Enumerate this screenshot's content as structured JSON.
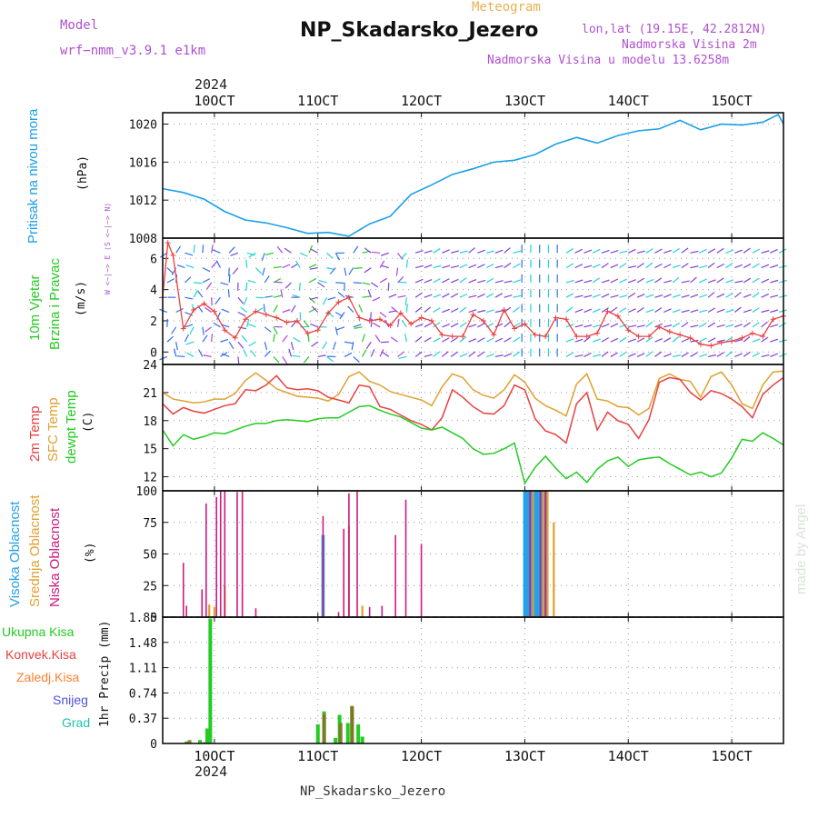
{
  "header": {
    "model_label": "Model",
    "model_name": "wrf−nmm_v3.9.1  e1km",
    "meteogram": "Meteogram",
    "station": "NP_Skadarsko_Jezero",
    "lonlat": "lon,lat (19.15E, 42.2812N)",
    "elev": "Nadmorska Visina 2m",
    "elev_model": "Nadmorska Visina u modelu 13.6258m",
    "year": "2024",
    "footer_station": "NP_Skadarsko_Jezero",
    "credit": "made by Angel"
  },
  "colors": {
    "pressure": "#1aa0e6",
    "wind_speed": "#e84040",
    "temp2m": "#e84040",
    "sfc_temp": "#e0a030",
    "dewpt": "#22cc22",
    "high_cloud": "#22a0e8",
    "mid_cloud": "#e0a030",
    "low_cloud": "#cc1a80",
    "total_precip": "#22cc22",
    "conv_precip": "#e84040",
    "frozen_precip": "#ff8030",
    "snow": "#5050dd",
    "graupel": "#20c0b0",
    "purple_text": "#b050d0",
    "orange_text": "#e8b050"
  },
  "chart_data": [
    {
      "type": "line",
      "panel": "pressure",
      "ylabel_lines": [
        "Pritisak na nivou mora",
        "(hPa)"
      ],
      "x_ticks": [
        "10OCT",
        "11OCT",
        "12OCT",
        "13OCT",
        "14OCT",
        "15OCT"
      ],
      "x_tick_days": [
        10,
        11,
        12,
        13,
        14,
        15
      ],
      "xlim": [
        9.5,
        15.5
      ],
      "ylim": [
        1008,
        1021.2
      ],
      "y_ticks": [
        "1008",
        "1012",
        "1016",
        "1020"
      ],
      "y_tick_values": [
        1008,
        1012,
        1016,
        1020
      ],
      "grid": true,
      "series": [
        {
          "x": [
            9.5,
            9.7,
            9.9,
            10.1,
            10.3,
            10.5,
            10.7,
            10.9,
            11.1,
            11.3,
            11.5,
            11.7,
            11.9,
            12.1,
            12.3,
            12.5,
            12.7,
            12.9,
            13.1,
            13.3,
            13.5,
            13.7,
            13.9,
            14.1,
            14.3,
            14.5,
            14.7,
            14.9,
            15.1,
            15.3,
            15.45,
            15.5
          ],
          "y": [
            1013.2,
            1012.8,
            1012.1,
            1010.8,
            1009.9,
            1009.6,
            1009.1,
            1008.5,
            1008.6,
            1008.2,
            1009.5,
            1010.3,
            1012.6,
            1013.6,
            1014.7,
            1015.3,
            1016.0,
            1016.2,
            1016.8,
            1017.9,
            1018.6,
            1018.0,
            1018.8,
            1019.3,
            1019.5,
            1020.4,
            1019.4,
            1020.0,
            1019.9,
            1020.2,
            1021.0,
            1020.0
          ]
        }
      ]
    },
    {
      "type": "line",
      "panel": "wind",
      "ylabel_lines": [
        "10m Vjetar",
        "Brzina i Pravac",
        "(m/s)"
      ],
      "compass_label": "W <−|−> E  (S <−|−> N)",
      "xlim": [
        9.5,
        15.5
      ],
      "ylim": [
        -0.8,
        7.3
      ],
      "y_ticks": [
        "0",
        "2",
        "4",
        "6"
      ],
      "y_tick_values": [
        0,
        2,
        4,
        6
      ],
      "grid": true,
      "series": [
        {
          "x": [
            9.5,
            9.55,
            9.6,
            9.7,
            9.8,
            9.9,
            10.0,
            10.1,
            10.2,
            10.3,
            10.4,
            10.5,
            10.6,
            10.7,
            10.8,
            10.9,
            11.0,
            11.1,
            11.2,
            11.3,
            11.4,
            11.5,
            11.6,
            11.7,
            11.8,
            11.9,
            12.0,
            12.1,
            12.2,
            12.3,
            12.4,
            12.5,
            12.6,
            12.7,
            12.8,
            12.9,
            13.0,
            13.1,
            13.2,
            13.3,
            13.4,
            13.5,
            13.6,
            13.7,
            13.8,
            13.9,
            14.0,
            14.1,
            14.2,
            14.3,
            14.4,
            14.5,
            14.6,
            14.7,
            14.8,
            14.9,
            15.0,
            15.1,
            15.2,
            15.3,
            15.4,
            15.5
          ],
          "y": [
            3.5,
            7.0,
            6.2,
            1.5,
            2.7,
            3.1,
            2.6,
            1.4,
            0.9,
            2.1,
            2.6,
            2.4,
            2.2,
            1.9,
            2.0,
            1.2,
            1.4,
            2.5,
            3.2,
            3.5,
            2.2,
            2.0,
            2.1,
            1.7,
            2.5,
            1.8,
            2.2,
            2.0,
            1.1,
            1.0,
            1.0,
            2.4,
            2.0,
            1.1,
            2.7,
            1.5,
            1.8,
            1.1,
            1.0,
            2.2,
            2.1,
            1.0,
            1.0,
            1.2,
            2.6,
            2.3,
            1.4,
            1.0,
            1.0,
            1.6,
            1.3,
            1.1,
            0.9,
            0.5,
            0.4,
            0.6,
            0.7,
            0.9,
            1.2,
            1.0,
            2.1,
            2.3
          ]
        }
      ]
    },
    {
      "type": "line",
      "panel": "temperature",
      "ylabel_lines": [
        "2m Temp",
        "SFC Temp",
        "dewpt Temp",
        "(C)"
      ],
      "xlim": [
        9.5,
        15.5
      ],
      "ylim": [
        10.5,
        24
      ],
      "y_ticks": [
        "12",
        "15",
        "18",
        "21",
        "24"
      ],
      "y_tick_values": [
        12,
        15,
        18,
        21,
        24
      ],
      "grid": true,
      "series": [
        {
          "name": "2m Temp",
          "x": [
            9.5,
            9.6,
            9.7,
            9.8,
            9.9,
            10.0,
            10.1,
            10.2,
            10.3,
            10.4,
            10.5,
            10.6,
            10.7,
            10.8,
            10.9,
            11.0,
            11.1,
            11.2,
            11.3,
            11.4,
            11.5,
            11.6,
            11.7,
            11.8,
            11.9,
            12.0,
            12.1,
            12.2,
            12.3,
            12.4,
            12.5,
            12.6,
            12.7,
            12.8,
            12.9,
            13.0,
            13.1,
            13.2,
            13.3,
            13.4,
            13.5,
            13.6,
            13.7,
            13.8,
            13.9,
            14.0,
            14.1,
            14.2,
            14.3,
            14.4,
            14.5,
            14.6,
            14.7,
            14.8,
            14.9,
            15.0,
            15.1,
            15.2,
            15.3,
            15.4,
            15.5
          ],
          "y": [
            19.8,
            18.7,
            19.4,
            19.0,
            18.8,
            19.2,
            19.6,
            19.8,
            21.3,
            21.2,
            21.8,
            22.8,
            21.5,
            21.3,
            21.4,
            21.2,
            20.5,
            20.2,
            19.9,
            21.8,
            21.6,
            19.5,
            19.2,
            18.6,
            18.0,
            17.6,
            17.0,
            18.3,
            21.3,
            20.5,
            19.5,
            18.8,
            18.7,
            19.6,
            21.8,
            21.3,
            18.2,
            16.9,
            16.5,
            15.6,
            19.8,
            21.0,
            17.0,
            18.9,
            18.0,
            17.6,
            16.1,
            18.1,
            22.1,
            22.6,
            22.4,
            21.0,
            20.2,
            21.2,
            20.9,
            20.3,
            19.5,
            18.3,
            20.8,
            21.8,
            22.6
          ]
        },
        {
          "name": "SFC Temp",
          "x": [
            9.5,
            9.6,
            9.7,
            9.8,
            9.9,
            10.0,
            10.1,
            10.2,
            10.3,
            10.4,
            10.5,
            10.6,
            10.7,
            10.8,
            10.9,
            11.0,
            11.1,
            11.2,
            11.3,
            11.4,
            11.5,
            11.6,
            11.7,
            11.8,
            11.9,
            12.0,
            12.1,
            12.2,
            12.3,
            12.4,
            12.5,
            12.6,
            12.7,
            12.8,
            12.9,
            13.0,
            13.1,
            13.2,
            13.3,
            13.4,
            13.5,
            13.6,
            13.7,
            13.8,
            13.9,
            14.0,
            14.1,
            14.2,
            14.3,
            14.4,
            14.5,
            14.6,
            14.7,
            14.8,
            14.9,
            15.0,
            15.1,
            15.2,
            15.3,
            15.4,
            15.5
          ],
          "y": [
            21.0,
            20.3,
            20.1,
            19.9,
            20.0,
            20.3,
            20.3,
            20.9,
            22.3,
            23.1,
            22.3,
            21.4,
            21.0,
            20.6,
            20.5,
            20.4,
            20.1,
            20.8,
            22.7,
            23.2,
            22.2,
            21.8,
            21.1,
            20.8,
            20.5,
            20.2,
            19.6,
            21.6,
            23.0,
            22.6,
            21.3,
            20.7,
            20.4,
            21.3,
            22.9,
            22.1,
            20.4,
            19.6,
            19.1,
            18.5,
            21.9,
            23.0,
            20.3,
            20.1,
            19.5,
            19.4,
            18.6,
            19.3,
            22.5,
            23.0,
            22.4,
            22.2,
            20.5,
            22.7,
            23.2,
            21.8,
            19.8,
            19.3,
            21.8,
            23.2,
            23.3
          ]
        },
        {
          "name": "dewpt Temp",
          "x": [
            9.5,
            9.6,
            9.7,
            9.8,
            9.9,
            10.0,
            10.1,
            10.2,
            10.3,
            10.4,
            10.5,
            10.6,
            10.7,
            10.8,
            10.9,
            11.0,
            11.1,
            11.2,
            11.3,
            11.4,
            11.5,
            11.6,
            11.7,
            11.8,
            11.9,
            12.0,
            12.1,
            12.2,
            12.3,
            12.4,
            12.5,
            12.6,
            12.7,
            12.8,
            12.9,
            13.0,
            13.1,
            13.2,
            13.3,
            13.4,
            13.5,
            13.6,
            13.7,
            13.8,
            13.9,
            14.0,
            14.1,
            14.2,
            14.3,
            14.4,
            14.5,
            14.6,
            14.7,
            14.8,
            14.9,
            15.0,
            15.1,
            15.2,
            15.3,
            15.4,
            15.5
          ],
          "y": [
            17.0,
            15.3,
            16.5,
            16.0,
            16.3,
            16.7,
            16.6,
            17.0,
            17.4,
            17.7,
            17.7,
            18.0,
            18.1,
            18.0,
            17.9,
            18.2,
            18.3,
            18.3,
            18.9,
            19.5,
            19.6,
            19.1,
            18.7,
            18.4,
            17.8,
            17.2,
            17.0,
            17.3,
            16.7,
            16.1,
            15.0,
            14.4,
            14.5,
            15.0,
            15.6,
            11.3,
            13.0,
            14.2,
            12.9,
            11.8,
            12.5,
            11.4,
            12.8,
            13.7,
            14.1,
            13.1,
            13.8,
            14.0,
            14.1,
            13.4,
            12.8,
            12.2,
            12.5,
            12.0,
            12.4,
            14.0,
            16.0,
            15.8,
            16.7,
            16.1,
            15.4
          ]
        }
      ]
    },
    {
      "type": "bar",
      "panel": "clouds",
      "ylabel_lines": [
        "Visoka Oblacnost",
        "Srednja Oblacnost",
        "Niska Oblacnost",
        "(%)"
      ],
      "xlim": [
        9.5,
        15.5
      ],
      "ylim": [
        0,
        100
      ],
      "y_ticks": [
        "0",
        "25",
        "50",
        "75",
        "100"
      ],
      "y_tick_values": [
        0,
        25,
        50,
        75,
        100
      ],
      "grid": true,
      "series": [
        {
          "name": "Niska Oblacnost",
          "x": [
            9.7,
            9.73,
            9.88,
            9.92,
            10.02,
            10.06,
            10.1,
            10.22,
            10.27,
            10.4,
            11.05,
            11.2,
            11.25,
            11.3,
            11.38,
            11.5,
            11.62,
            11.75,
            11.85,
            12.0,
            13.05,
            13.15,
            13.2
          ],
          "y": [
            43,
            9,
            22,
            90,
            95,
            100,
            100,
            99,
            100,
            7,
            80,
            4,
            70,
            98,
            100,
            8,
            9,
            65,
            93,
            58,
            100,
            100,
            100
          ]
        },
        {
          "name": "Srednja Oblacnost",
          "x": [
            9.95,
            10.0,
            10.1,
            11.3,
            11.43,
            13.08,
            13.18,
            13.22,
            13.28
          ],
          "y": [
            10,
            8,
            25,
            72,
            9,
            100,
            100,
            100,
            75
          ]
        },
        {
          "name": "Visoka Oblacnost",
          "x": [
            11.05,
            13.0,
            13.03,
            13.06,
            13.09,
            13.12,
            13.15,
            13.18,
            13.21
          ],
          "y": [
            65,
            100,
            100,
            100,
            100,
            100,
            100,
            100,
            100
          ]
        }
      ]
    },
    {
      "type": "bar",
      "panel": "precip",
      "ylabel_lines": [
        "1hr Precip (mm)"
      ],
      "legend": [
        "Ukupna Kisa",
        "Konvek.Kisa",
        "Zaledj.Kisa",
        "Snijeg",
        "Grad"
      ],
      "xlim": [
        9.5,
        15.5
      ],
      "ylim": [
        0,
        1.85
      ],
      "y_ticks": [
        "0",
        "0.37",
        "0.74",
        "1.11",
        "1.48",
        "1.85"
      ],
      "y_tick_values": [
        0,
        0.37,
        0.74,
        1.11,
        1.48,
        1.85
      ],
      "grid": true,
      "series": [
        {
          "name": "Ukupna Kisa",
          "x": [
            9.73,
            9.86,
            9.93,
            9.96,
            11.0,
            11.06,
            11.17,
            11.21,
            11.29,
            11.33,
            11.39,
            11.43
          ],
          "y": [
            0.03,
            0.05,
            0.22,
            1.83,
            0.28,
            0.47,
            0.08,
            0.42,
            0.3,
            0.54,
            0.28,
            0.1
          ]
        },
        {
          "name": "Konvek.Kisa",
          "x": [
            9.76,
            9.9,
            11.06,
            11.22,
            11.33
          ],
          "y": [
            0.05,
            0.02,
            0.43,
            0.3,
            0.55
          ]
        }
      ]
    }
  ]
}
